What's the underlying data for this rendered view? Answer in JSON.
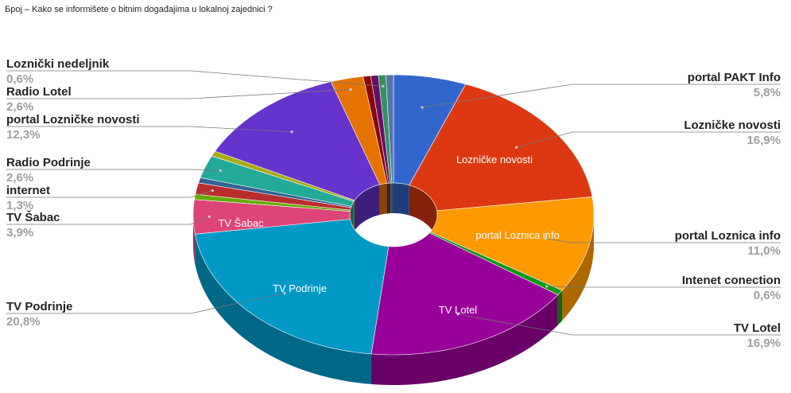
{
  "chart_data": {
    "type": "pie3d-donut",
    "title": "Број – Kako se informišete o bitnim događajima u lokalnoj zajednici ?",
    "categories": [
      "portal PAKT Info",
      "Lozničke novosti",
      "portal Loznica info",
      "Intenet conection",
      "TV Lotel",
      "TV Podrinje",
      "TV Šabac",
      null,
      "internet",
      null,
      "Radio Podrinje",
      null,
      "portal Lozničke novosti",
      "Radio Lotel",
      null,
      null,
      "Loznički nedeljnik",
      null
    ],
    "values": [
      5.8,
      16.9,
      11.0,
      0.6,
      16.9,
      20.8,
      3.9,
      0.6,
      1.3,
      0.6,
      2.6,
      0.6,
      12.3,
      2.6,
      0.6,
      0.6,
      0.6,
      0.6
    ],
    "value_labels": [
      "5,8%",
      "16,9%",
      "11,0%",
      "0,6%",
      "16,9%",
      "20,8%",
      "3,9%",
      null,
      "1,3%",
      null,
      "2,6%",
      null,
      "12,3%",
      "2,6%",
      null,
      null,
      "0,6%",
      null
    ],
    "colors": [
      "#3366cc",
      "#dc3912",
      "#ff9900",
      "#109618",
      "#990099",
      "#0099c6",
      "#dd4477",
      "#66aa00",
      "#b82e2e",
      "#316395",
      "#22aa99",
      "#aaaa11",
      "#6633cc",
      "#e67300",
      "#8b0707",
      "#651067",
      "#329262",
      "#5574a6"
    ]
  }
}
